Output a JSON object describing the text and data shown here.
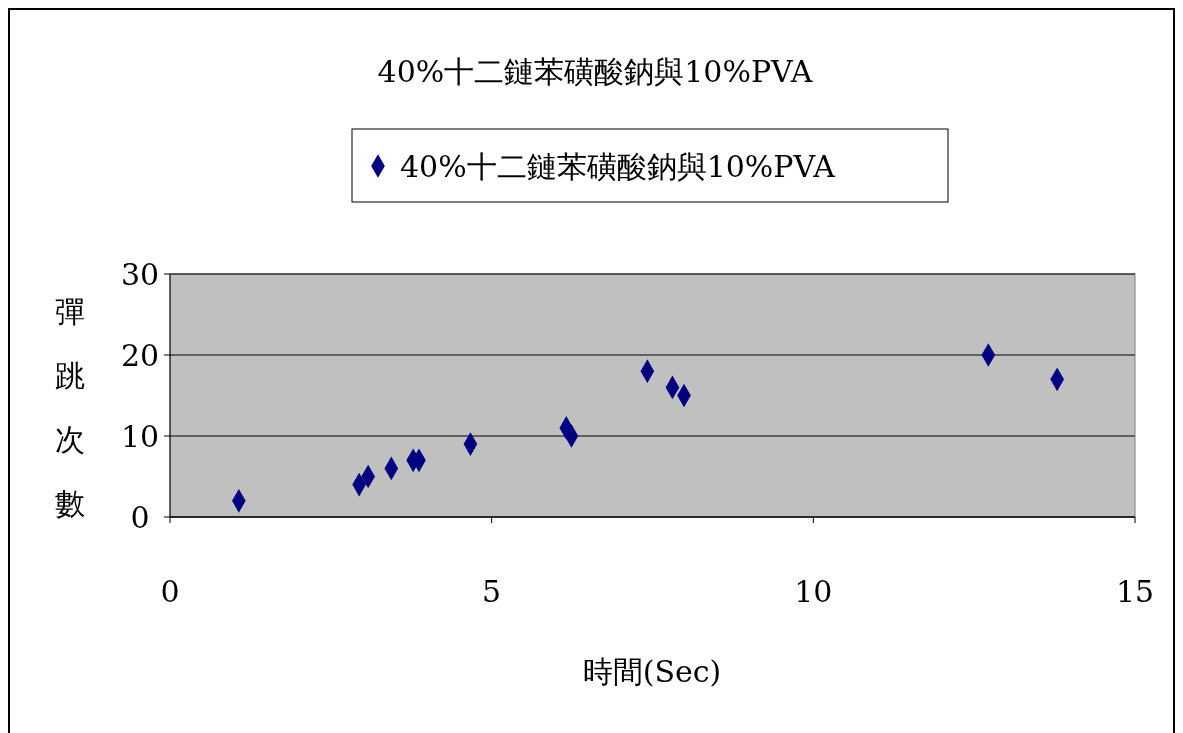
{
  "chart_data": {
    "type": "scatter",
    "title": "40%十二鏈苯磺酸鈉與10%PVA",
    "xlabel": "時間(Sec)",
    "ylabel": "彈跳次數",
    "series": [
      {
        "name": "40%十二鏈苯磺酸鈉與10%PVA",
        "color": "#000080",
        "x": [
          1.07,
          2.94,
          3.08,
          3.44,
          3.78,
          3.87,
          4.67,
          6.16,
          6.24,
          7.42,
          7.81,
          7.99,
          12.72,
          13.79
        ],
        "values": [
          2,
          4,
          5,
          6,
          7,
          7,
          9,
          11,
          10,
          18,
          16,
          15,
          20,
          17
        ]
      }
    ],
    "xlim": [
      0,
      15
    ],
    "xticks": [
      0,
      5,
      10,
      15
    ],
    "ylim": [
      0,
      30
    ],
    "yticks": [
      0,
      10,
      20,
      30
    ],
    "grid": "y",
    "legend": "top",
    "marker": "diamond"
  }
}
